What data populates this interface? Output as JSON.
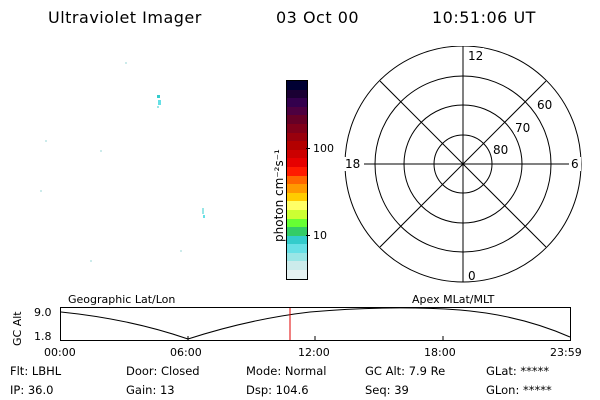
{
  "header": {
    "title": "Ultraviolet Imager",
    "date": "03 Oct 00",
    "time": "10:51:06 UT"
  },
  "colorbar": {
    "label": "photon cm⁻²s⁻¹",
    "ticks": [
      "100",
      "10"
    ],
    "colors": [
      "#000033",
      "#1a0033",
      "#33004d",
      "#4d0040",
      "#660026",
      "#80001a",
      "#99000d",
      "#b30000",
      "#cc0000",
      "#e60000",
      "#ff1a00",
      "#ff6600",
      "#ff9900",
      "#ffcc00",
      "#ffff66",
      "#ccff33",
      "#66ff33",
      "#33cc66",
      "#33cccc",
      "#66e0e6",
      "#99e6e6",
      "#ccebeb",
      "#e6f2f2"
    ]
  },
  "polar": {
    "labels": {
      "top": "12",
      "bottom": "0",
      "left": "18",
      "right": "6"
    },
    "rings": [
      "60",
      "70",
      "80"
    ]
  },
  "timeline": {
    "y_axis_label": "GC Alt",
    "y_ticks": [
      "9.0",
      "1.8"
    ],
    "left_title": "Geographic Lat/Lon",
    "right_title": "Apex MLat/MLT",
    "x_ticks": [
      "00:00",
      "06:00",
      "12:00",
      "18:00",
      "23:59"
    ],
    "marker_color": "#e00000"
  },
  "info": {
    "flt": "Flt: LBHL",
    "ip": "IP: 36.0",
    "door": "Door: Closed",
    "gain": "Gain: 13",
    "mode": "Mode: Normal",
    "dsp": "Dsp: 104.6",
    "gcalt": "GC Alt: 7.9 Re",
    "seq": "Seq: 39",
    "glat": "GLat: *****",
    "glon": "GLon: *****"
  }
}
